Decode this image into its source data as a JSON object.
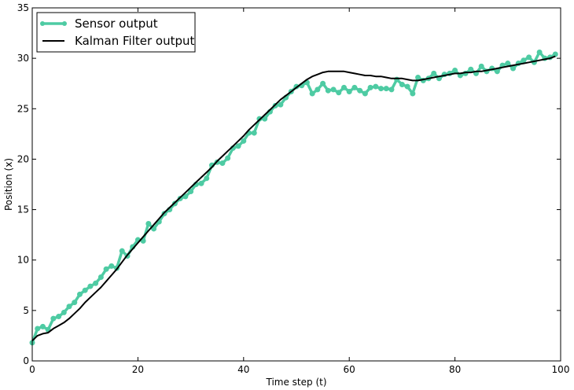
{
  "chart_data": {
    "type": "line",
    "xlabel": "Time step (t)",
    "ylabel": "Position (x)",
    "xlim": [
      0,
      100
    ],
    "ylim": [
      0,
      35
    ],
    "x_ticks": [
      0,
      20,
      40,
      60,
      80,
      100
    ],
    "y_ticks": [
      0,
      5,
      10,
      15,
      20,
      25,
      30,
      35
    ],
    "grid": false,
    "legend_position": "top-left",
    "series": [
      {
        "name": "Sensor output",
        "color": "#4ecba3",
        "marker": "circle",
        "x": [
          0,
          1,
          2,
          3,
          4,
          5,
          6,
          7,
          8,
          9,
          10,
          11,
          12,
          13,
          14,
          15,
          16,
          17,
          18,
          19,
          20,
          21,
          22,
          23,
          24,
          25,
          26,
          27,
          28,
          29,
          30,
          31,
          32,
          33,
          34,
          35,
          36,
          37,
          38,
          39,
          40,
          41,
          42,
          43,
          44,
          45,
          46,
          47,
          48,
          49,
          50,
          51,
          52,
          53,
          54,
          55,
          56,
          57,
          58,
          59,
          60,
          61,
          62,
          63,
          64,
          65,
          66,
          67,
          68,
          69,
          70,
          71,
          72,
          73,
          74,
          75,
          76,
          77,
          78,
          79,
          80,
          81,
          82,
          83,
          84,
          85,
          86,
          87,
          88,
          89,
          90,
          91,
          92,
          93,
          94,
          95,
          96,
          97,
          98,
          99
        ],
        "y": [
          1.8,
          3.2,
          3.4,
          3.1,
          4.2,
          4.4,
          4.8,
          5.4,
          5.8,
          6.6,
          7.0,
          7.4,
          7.7,
          8.3,
          9.1,
          9.4,
          9.2,
          10.9,
          10.4,
          11.3,
          12.0,
          11.9,
          13.6,
          13.1,
          13.8,
          14.6,
          15.0,
          15.6,
          16.1,
          16.3,
          16.8,
          17.5,
          17.6,
          18.1,
          19.4,
          19.7,
          19.6,
          20.1,
          21.1,
          21.3,
          21.8,
          22.6,
          22.6,
          24.0,
          24.0,
          24.7,
          25.3,
          25.4,
          26.1,
          26.7,
          27.2,
          27.3,
          27.6,
          26.5,
          26.9,
          27.5,
          26.8,
          26.9,
          26.6,
          27.1,
          26.7,
          27.1,
          26.8,
          26.5,
          27.1,
          27.2,
          27.0,
          27.0,
          26.9,
          27.9,
          27.4,
          27.2,
          26.5,
          28.1,
          27.8,
          28.0,
          28.5,
          28.0,
          28.4,
          28.5,
          28.8,
          28.3,
          28.5,
          28.9,
          28.5,
          29.2,
          28.7,
          29.0,
          28.7,
          29.3,
          29.5,
          29.0,
          29.5,
          29.8,
          30.1,
          29.6,
          30.6,
          30.0,
          30.1,
          30.4
        ]
      },
      {
        "name": "Kalman Filter output",
        "color": "#000000",
        "marker": "none",
        "x": [
          0,
          1,
          2,
          3,
          4,
          5,
          6,
          7,
          8,
          9,
          10,
          11,
          12,
          13,
          14,
          15,
          16,
          17,
          18,
          19,
          20,
          21,
          22,
          23,
          24,
          25,
          26,
          27,
          28,
          29,
          30,
          31,
          32,
          33,
          34,
          35,
          36,
          37,
          38,
          39,
          40,
          41,
          42,
          43,
          44,
          45,
          46,
          47,
          48,
          49,
          50,
          51,
          52,
          53,
          54,
          55,
          56,
          57,
          58,
          59,
          60,
          61,
          62,
          63,
          64,
          65,
          66,
          67,
          68,
          69,
          70,
          71,
          72,
          73,
          74,
          75,
          76,
          77,
          78,
          79,
          80,
          81,
          82,
          83,
          84,
          85,
          86,
          87,
          88,
          89,
          90,
          91,
          92,
          93,
          94,
          95,
          96,
          97,
          98,
          99
        ],
        "y": [
          2.0,
          2.5,
          2.7,
          2.8,
          3.2,
          3.5,
          3.8,
          4.2,
          4.7,
          5.2,
          5.8,
          6.3,
          6.8,
          7.3,
          7.9,
          8.5,
          9.1,
          9.8,
          10.5,
          11.1,
          11.7,
          12.3,
          12.9,
          13.5,
          14.1,
          14.7,
          15.2,
          15.7,
          16.2,
          16.7,
          17.2,
          17.7,
          18.2,
          18.7,
          19.2,
          19.8,
          20.3,
          20.8,
          21.3,
          21.8,
          22.3,
          22.9,
          23.4,
          23.9,
          24.4,
          24.9,
          25.4,
          25.9,
          26.3,
          26.7,
          27.1,
          27.5,
          27.9,
          28.2,
          28.4,
          28.6,
          28.7,
          28.7,
          28.7,
          28.7,
          28.6,
          28.5,
          28.4,
          28.3,
          28.3,
          28.2,
          28.2,
          28.1,
          28.0,
          28.0,
          28.0,
          27.9,
          27.8,
          27.8,
          27.9,
          28.0,
          28.1,
          28.2,
          28.3,
          28.4,
          28.5,
          28.5,
          28.6,
          28.6,
          28.7,
          28.7,
          28.8,
          28.9,
          29.0,
          29.1,
          29.2,
          29.3,
          29.4,
          29.5,
          29.6,
          29.7,
          29.8,
          29.9,
          30.0,
          30.2
        ]
      }
    ]
  }
}
